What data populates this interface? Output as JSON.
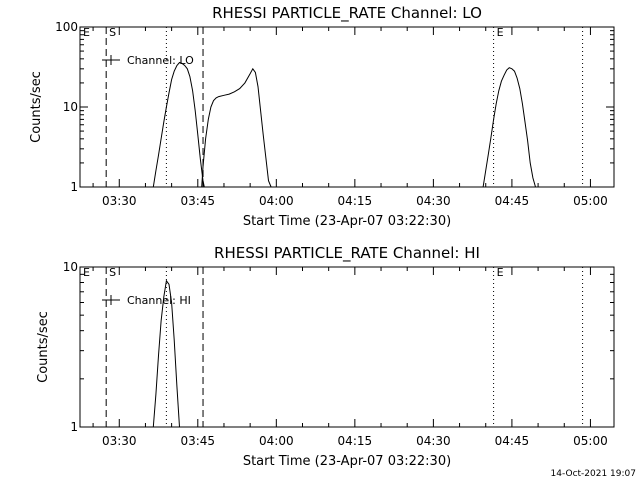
{
  "chart_data": [
    {
      "type": "line",
      "title": "RHESSI PARTICLE_RATE Channel: LO",
      "xlabel": "Start Time (23-Apr-07 03:22:30)",
      "ylabel": "Counts/sec",
      "y_scale": "log",
      "ylim": [
        1,
        100
      ],
      "xlim": [
        "03:22:30",
        "05:04:30"
      ],
      "x_ticks": [
        "03:30",
        "03:45",
        "04:00",
        "04:15",
        "04:30",
        "04:45",
        "05:00"
      ],
      "y_ticks": [
        "1",
        "10",
        "100"
      ],
      "legend": {
        "label": "Channel: LO",
        "placement": "top-left"
      },
      "series": [
        {
          "name": "Channel: LO",
          "segments": [
            [
              [
                "03:36:30",
                1
              ],
              [
                "03:37:00",
                1.6
              ],
              [
                "03:37:30",
                2.5
              ],
              [
                "03:38:00",
                4
              ],
              [
                "03:38:30",
                6.5
              ],
              [
                "03:39:00",
                10
              ],
              [
                "03:39:30",
                15
              ],
              [
                "03:40:00",
                22
              ],
              [
                "03:40:30",
                28
              ],
              [
                "03:41:00",
                33
              ],
              [
                "03:41:30",
                36
              ],
              [
                "03:42:00",
                35
              ],
              [
                "03:42:30",
                33
              ],
              [
                "03:43:00",
                30
              ],
              [
                "03:43:30",
                24
              ],
              [
                "03:44:00",
                16
              ],
              [
                "03:44:30",
                9
              ],
              [
                "03:45:00",
                4.5
              ],
              [
                "03:45:30",
                2.2
              ],
              [
                "03:46:00",
                1.2
              ],
              [
                "03:46:15",
                1
              ]
            ],
            [
              [
                "03:45:45",
                1
              ],
              [
                "03:46:00",
                1.8
              ],
              [
                "03:46:30",
                4
              ],
              [
                "03:47:00",
                7
              ],
              [
                "03:47:30",
                10
              ],
              [
                "03:48:00",
                12
              ],
              [
                "03:48:30",
                13
              ],
              [
                "03:49:00",
                13.5
              ],
              [
                "03:50:00",
                14
              ],
              [
                "03:51:00",
                14.5
              ],
              [
                "03:52:00",
                15.5
              ],
              [
                "03:53:00",
                17
              ],
              [
                "03:54:00",
                20
              ],
              [
                "03:55:00",
                26
              ],
              [
                "03:55:30",
                30
              ],
              [
                "03:56:00",
                27
              ],
              [
                "03:56:30",
                18
              ],
              [
                "03:57:00",
                9
              ],
              [
                "03:57:30",
                4.5
              ],
              [
                "03:58:00",
                2.3
              ],
              [
                "03:58:30",
                1.2
              ],
              [
                "03:59:00",
                1
              ]
            ],
            [
              [
                "04:39:30",
                1
              ],
              [
                "04:40:00",
                1.6
              ],
              [
                "04:40:30",
                2.6
              ],
              [
                "04:41:00",
                4.2
              ],
              [
                "04:41:30",
                7
              ],
              [
                "04:42:00",
                11
              ],
              [
                "04:42:30",
                16
              ],
              [
                "04:43:00",
                21
              ],
              [
                "04:43:30",
                25
              ],
              [
                "04:44:00",
                29
              ],
              [
                "04:44:30",
                31
              ],
              [
                "04:45:00",
                30
              ],
              [
                "04:45:30",
                28
              ],
              [
                "04:46:00",
                23
              ],
              [
                "04:46:30",
                17
              ],
              [
                "04:47:00",
                11
              ],
              [
                "04:47:30",
                6.5
              ],
              [
                "04:48:00",
                3.8
              ],
              [
                "04:48:30",
                2
              ],
              [
                "04:49:00",
                1.3
              ],
              [
                "04:49:30",
                1
              ]
            ]
          ]
        }
      ],
      "markers": [
        {
          "text": "E",
          "time": "03:22:30",
          "style": "dashed"
        },
        {
          "text": "S",
          "time": "03:27:30",
          "style": "dashed"
        },
        {
          "text": "",
          "time": "03:39:00",
          "style": "dotted"
        },
        {
          "text": "",
          "time": "03:46:00",
          "style": "dashed"
        },
        {
          "text": "E",
          "time": "04:41:30",
          "style": "dotted"
        },
        {
          "text": "",
          "time": "04:58:30",
          "style": "dotted"
        }
      ]
    },
    {
      "type": "line",
      "title": "RHESSI PARTICLE_RATE Channel: HI",
      "xlabel": "Start Time (23-Apr-07 03:22:30)",
      "ylabel": "Counts/sec",
      "y_scale": "log",
      "ylim": [
        1,
        10
      ],
      "xlim": [
        "03:22:30",
        "05:04:30"
      ],
      "x_ticks": [
        "03:30",
        "03:45",
        "04:00",
        "04:15",
        "04:30",
        "04:45",
        "05:00"
      ],
      "y_ticks": [
        "1",
        "10"
      ],
      "legend": {
        "label": "Channel: HI",
        "placement": "top-left"
      },
      "series": [
        {
          "name": "Channel: HI",
          "segments": [
            [
              [
                "03:36:30",
                1
              ],
              [
                "03:37:00",
                1.6
              ],
              [
                "03:37:30",
                2.8
              ],
              [
                "03:38:00",
                4.6
              ],
              [
                "03:38:30",
                6.5
              ],
              [
                "03:39:00",
                8.2
              ],
              [
                "03:39:30",
                7.8
              ],
              [
                "03:40:00",
                6
              ],
              [
                "03:40:30",
                3.5
              ],
              [
                "03:41:00",
                1.8
              ],
              [
                "03:41:30",
                1
              ]
            ]
          ]
        }
      ],
      "markers": [
        {
          "text": "E",
          "time": "03:22:30",
          "style": "dashed"
        },
        {
          "text": "S",
          "time": "03:27:30",
          "style": "dashed"
        },
        {
          "text": "",
          "time": "03:39:00",
          "style": "dotted"
        },
        {
          "text": "",
          "time": "03:46:00",
          "style": "dashed"
        },
        {
          "text": "E",
          "time": "04:41:30",
          "style": "dotted"
        },
        {
          "text": "",
          "time": "04:58:30",
          "style": "dotted"
        }
      ]
    }
  ],
  "footer": {
    "timestamp": "14-Oct-2021 19:07"
  }
}
